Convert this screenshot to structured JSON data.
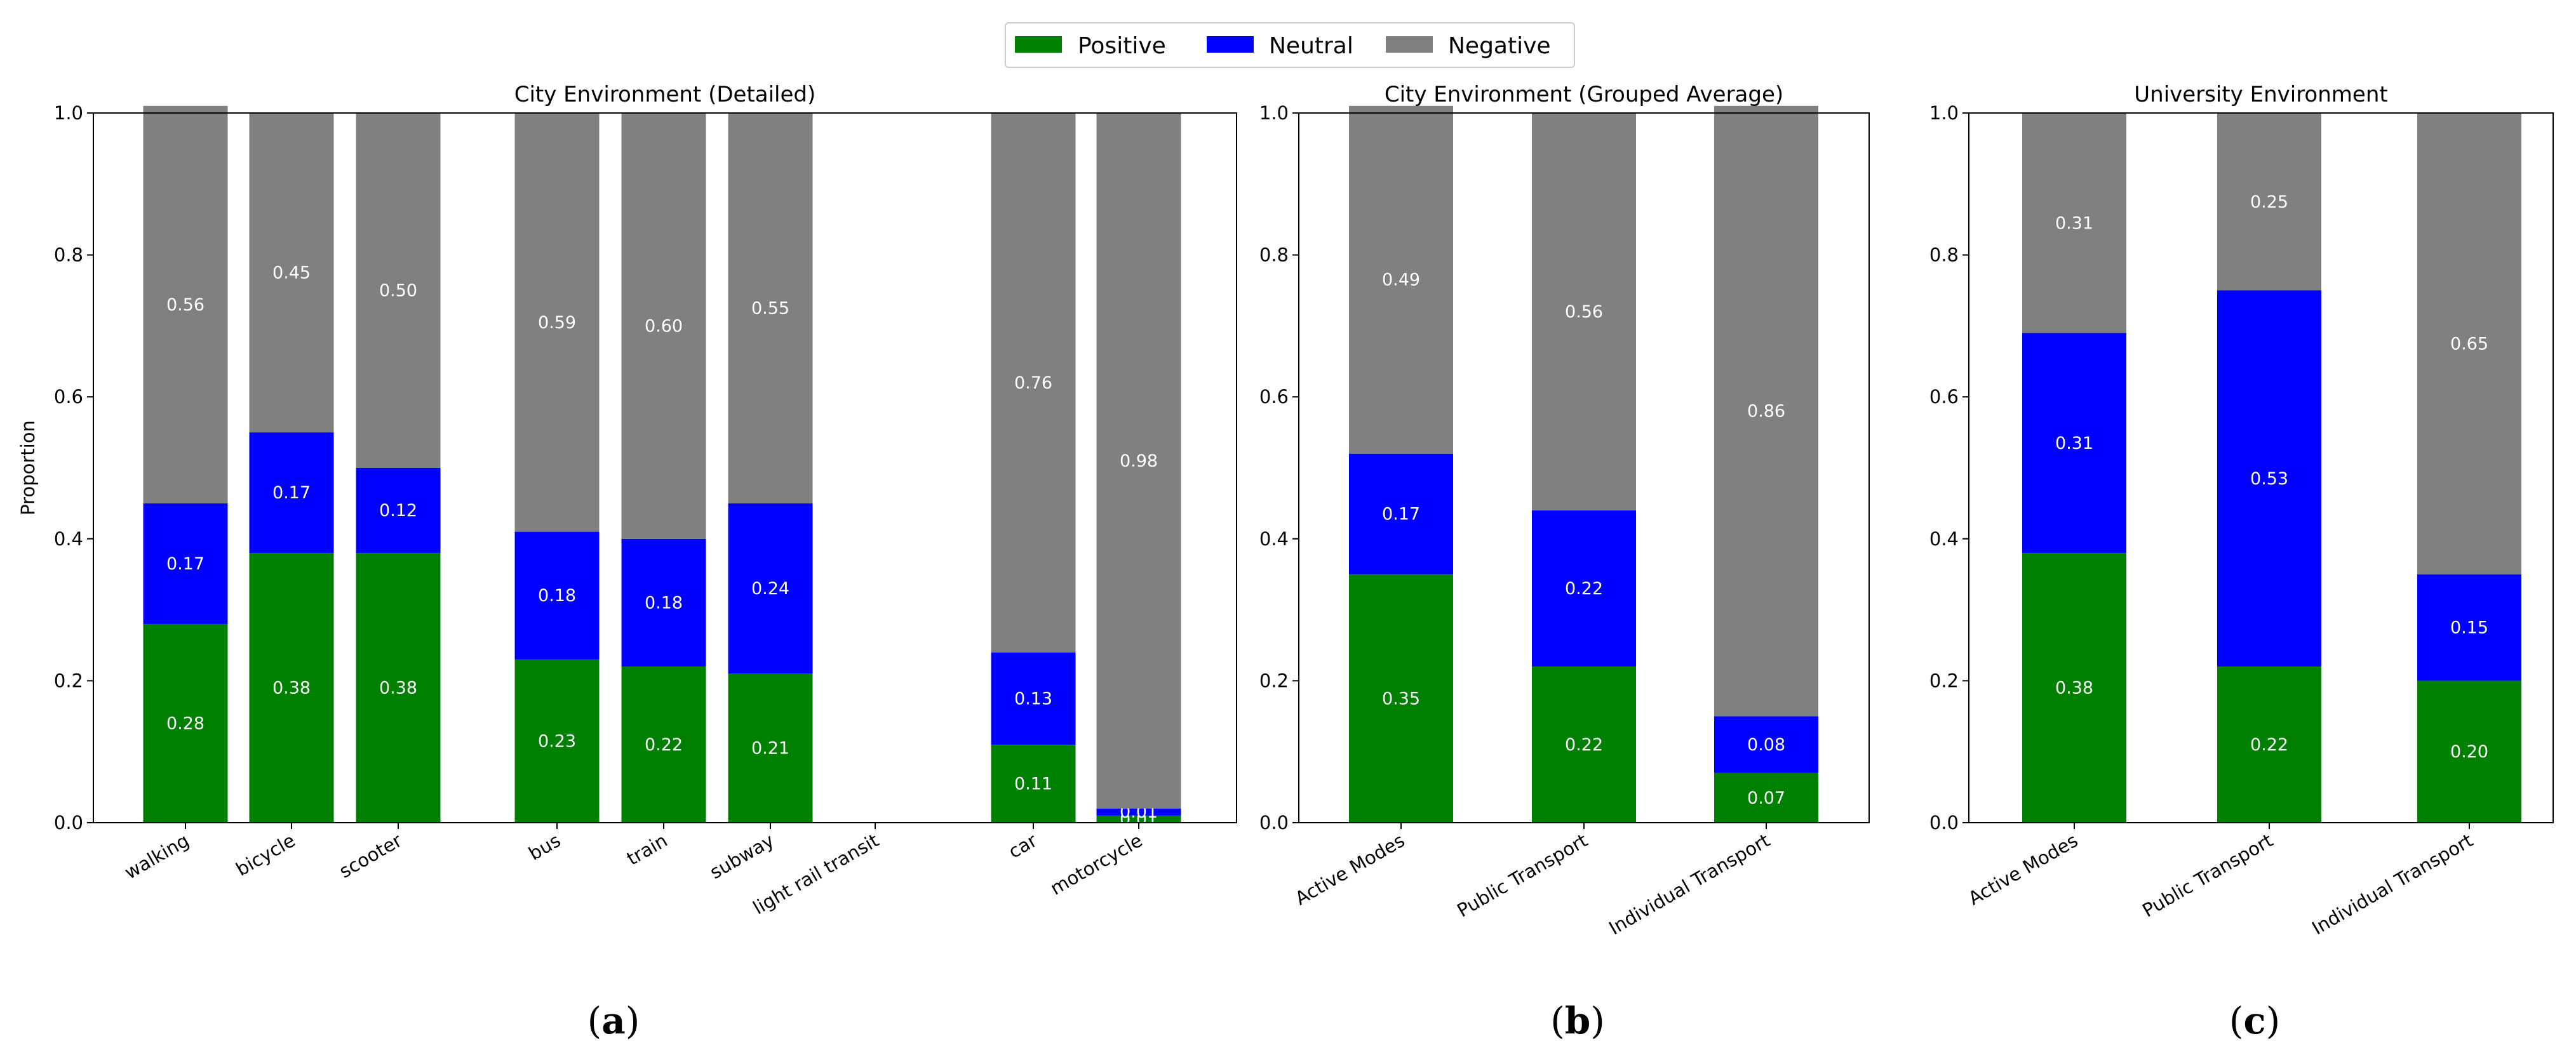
{
  "legend": {
    "items": [
      {
        "key": "positive",
        "label": "Positive",
        "color": "#008000"
      },
      {
        "key": "neutral",
        "label": "Neutral",
        "color": "#0000ff"
      },
      {
        "key": "negative",
        "label": "Negative",
        "color": "#808080"
      }
    ]
  },
  "captions": [
    "a",
    "b",
    "c"
  ],
  "chart_data": [
    {
      "type": "bar",
      "stacked": true,
      "title": "City Environment (Detailed)",
      "ylabel": "Proportion",
      "ylim": [
        0,
        1.0
      ],
      "yticks": [
        "0.0",
        "0.2",
        "0.4",
        "0.6",
        "0.8",
        "1.0"
      ],
      "categories": [
        "walking",
        "bicycle",
        "scooter",
        "bus",
        "train",
        "subway",
        "light rail transit",
        "car",
        "motorcycle"
      ],
      "series": [
        {
          "name": "Positive",
          "values": [
            0.28,
            0.38,
            0.38,
            0.23,
            0.22,
            0.21,
            0.0,
            0.11,
            0.01
          ]
        },
        {
          "name": "Neutral",
          "values": [
            0.17,
            0.17,
            0.12,
            0.18,
            0.18,
            0.24,
            0.0,
            0.13,
            0.01
          ]
        },
        {
          "name": "Negative",
          "values": [
            0.56,
            0.45,
            0.5,
            0.59,
            0.6,
            0.55,
            0.0,
            0.76,
            0.98
          ]
        }
      ]
    },
    {
      "type": "bar",
      "stacked": true,
      "title": "City Environment (Grouped Average)",
      "ylim": [
        0,
        1.0
      ],
      "yticks": [
        "0.0",
        "0.2",
        "0.4",
        "0.6",
        "0.8",
        "1.0"
      ],
      "categories": [
        "Active Modes",
        "Public Transport",
        "Individual Transport"
      ],
      "series": [
        {
          "name": "Positive",
          "values": [
            0.35,
            0.22,
            0.07
          ]
        },
        {
          "name": "Neutral",
          "values": [
            0.17,
            0.22,
            0.08
          ]
        },
        {
          "name": "Negative",
          "values": [
            0.49,
            0.56,
            0.86
          ]
        }
      ]
    },
    {
      "type": "bar",
      "stacked": true,
      "title": "University Environment",
      "ylim": [
        0,
        1.0
      ],
      "yticks": [
        "0.0",
        "0.2",
        "0.4",
        "0.6",
        "0.8",
        "1.0"
      ],
      "categories": [
        "Active Modes",
        "Public Transport",
        "Individual Transport"
      ],
      "series": [
        {
          "name": "Positive",
          "values": [
            0.38,
            0.22,
            0.2
          ]
        },
        {
          "name": "Neutral",
          "values": [
            0.31,
            0.53,
            0.15
          ]
        },
        {
          "name": "Negative",
          "values": [
            0.31,
            0.25,
            0.65
          ]
        }
      ]
    }
  ]
}
